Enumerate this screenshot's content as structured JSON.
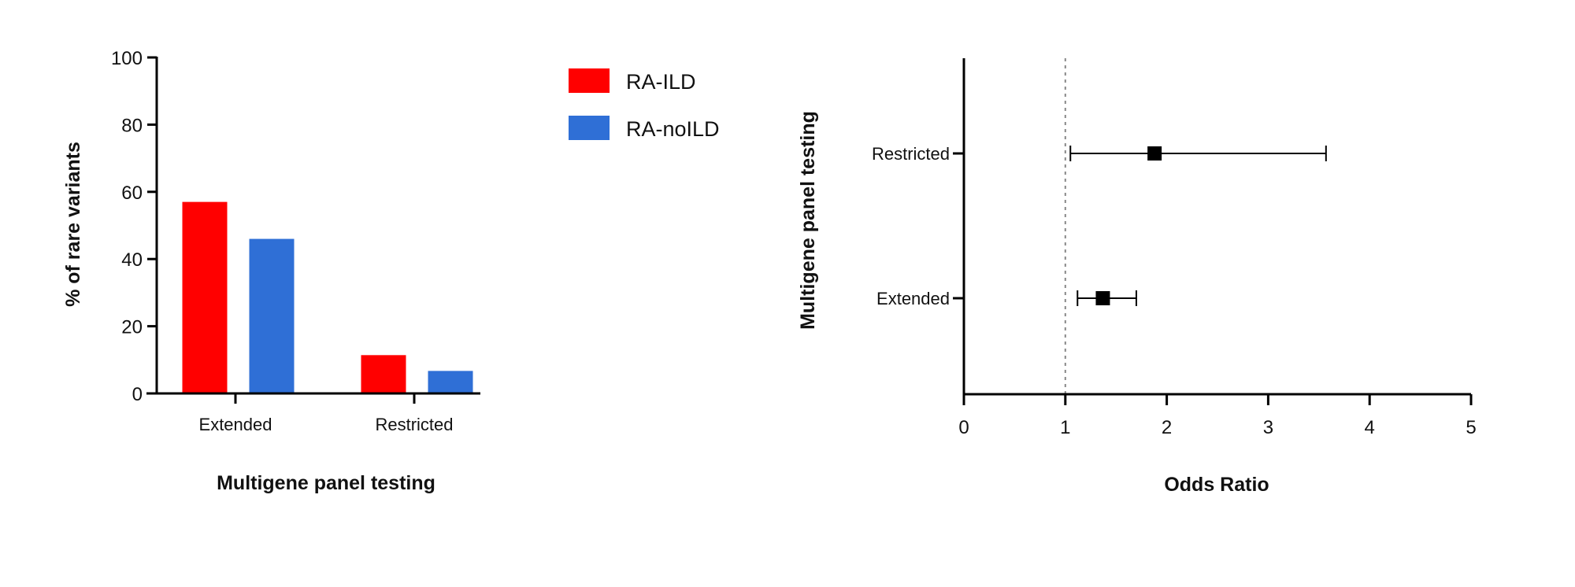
{
  "chart_data": [
    {
      "type": "bar",
      "categories": [
        "Extended",
        "Restricted"
      ],
      "series": [
        {
          "name": "RA-ILD",
          "color": "#ff0000",
          "values": [
            57,
            11.4
          ]
        },
        {
          "name": "RA-noILD",
          "color": "#2f6fd6",
          "values": [
            46,
            6.7
          ]
        }
      ],
      "xlabel": "Multigene panel testing",
      "ylabel": "% of rare variants",
      "ylim": [
        0,
        100
      ],
      "yticks": [
        0,
        20,
        40,
        60,
        80,
        100
      ],
      "legend": "top-right",
      "grid": false
    },
    {
      "type": "scatter",
      "subtype": "forest",
      "categories": [
        "Restricted",
        "Extended"
      ],
      "points": [
        {
          "category": "Restricted",
          "or": 1.88,
          "ci_low": 1.05,
          "ci_high": 3.57
        },
        {
          "category": "Extended",
          "or": 1.37,
          "ci_low": 1.12,
          "ci_high": 1.7
        }
      ],
      "reference_line": 1,
      "xlabel": "Odds Ratio",
      "ylabel": "Multigene panel testing",
      "xlim": [
        0,
        5
      ],
      "xticks": [
        0,
        1,
        2,
        3,
        4,
        5
      ],
      "grid": false
    }
  ]
}
